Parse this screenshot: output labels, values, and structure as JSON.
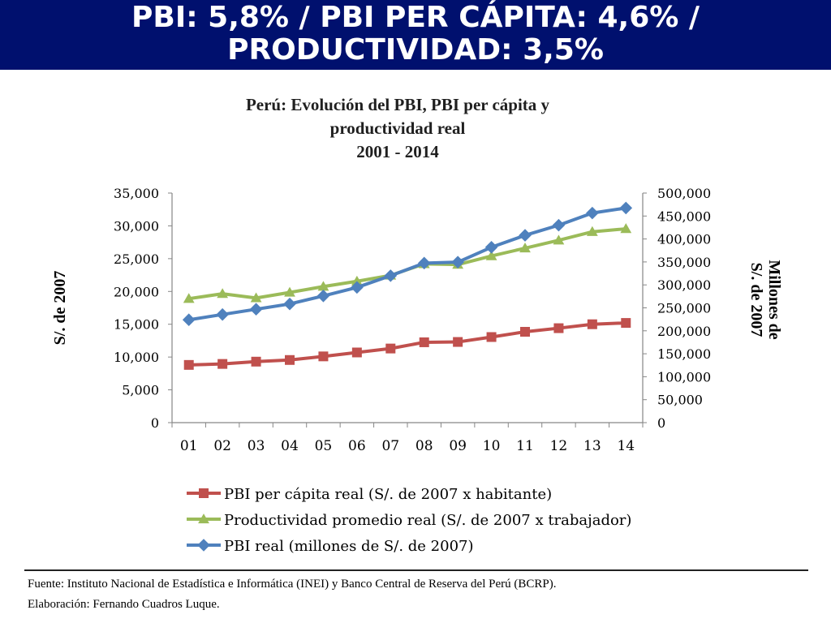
{
  "header": {
    "line1": "PBI: 5,8% / PBI PER CÁPITA: 4,6% /",
    "line2": "PRODUCTIVIDAD: 3,5%"
  },
  "chart_data": {
    "type": "line",
    "title_lines": [
      "Perú: Evolución del PBI, PBI per cápita y",
      "productividad real",
      "2001 - 2014"
    ],
    "categories": [
      "01",
      "02",
      "03",
      "04",
      "05",
      "06",
      "07",
      "08",
      "09",
      "10",
      "11",
      "12",
      "13",
      "14"
    ],
    "y_left": {
      "label": "S/. de 2007",
      "ylim": [
        0,
        35000
      ],
      "ticks": [
        "0",
        "5,000",
        "10,000",
        "15,000",
        "20,000",
        "25,000",
        "30,000",
        "35,000"
      ]
    },
    "y_right": {
      "label_lines": [
        "Millones de",
        "S/. de 2007"
      ],
      "ylim": [
        0,
        500000
      ],
      "ticks": [
        "0",
        "50,000",
        "100,000",
        "150,000",
        "200,000",
        "250,000",
        "300,000",
        "350,000",
        "400,000",
        "450,000",
        "500,000"
      ]
    },
    "series": [
      {
        "name": "PBI per cápita real (S/. de 2007 x habitante)",
        "axis": "left",
        "color": "#c0504d",
        "marker": "square",
        "values": [
          8800,
          8950,
          9300,
          9550,
          10100,
          10700,
          11300,
          12250,
          12300,
          13050,
          13850,
          14400,
          15000,
          15200
        ]
      },
      {
        "name": "Productividad promedio real (S/. de 2007 x trabajador)",
        "axis": "left",
        "color": "#9bbb59",
        "marker": "triangle",
        "values": [
          18900,
          19650,
          19000,
          19850,
          20750,
          21550,
          22450,
          24200,
          24100,
          25400,
          26600,
          27800,
          29100,
          29550
        ]
      },
      {
        "name": "PBI real (millones de S/. de 2007)",
        "axis": "right",
        "color": "#4f81bd",
        "marker": "diamond",
        "values": [
          224000,
          235500,
          247000,
          258500,
          276000,
          294500,
          320000,
          347500,
          349500,
          382000,
          408000,
          430000,
          456500,
          467500
        ]
      }
    ],
    "legend_position": "bottom",
    "grid": false
  },
  "footer": {
    "source": "Fuente: Instituto Nacional de Estadística e Informática (INEI) y Banco Central de Reserva del Perú (BCRP).",
    "author": "Elaboración: Fernando Cuadros Luque."
  }
}
